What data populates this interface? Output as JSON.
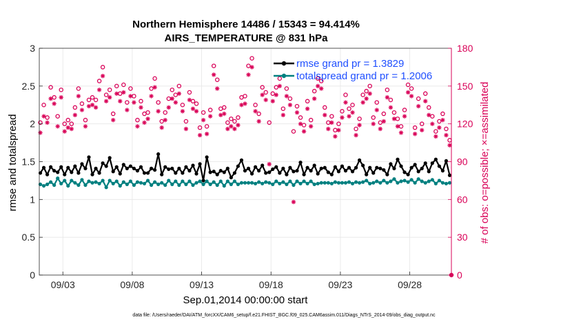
{
  "colors": {
    "rmse": "#000000",
    "totalspread": "#008080",
    "obs": "#d90057",
    "legend_text": "#1f4fff"
  },
  "chart_data": {
    "type": "line",
    "title": "Northern Hemisphere 14486 / 15343 = 94.414%",
    "subtitle": "AIRS_TEMPERATURE @ 831 hPa",
    "xlabel": "Sep.01,2014 00:00:00 start",
    "ylabel": "rmse and totalspread",
    "ylabel_right": "# of obs: o=possible; ×=assimilated",
    "x_ticks": [
      "09/03",
      "09/08",
      "09/13",
      "09/18",
      "09/23",
      "09/28"
    ],
    "x_tick_days": [
      3,
      8,
      13,
      18,
      23,
      28
    ],
    "x_range_days": [
      1.3,
      31
    ],
    "y_left_ticks": [
      "0",
      "0.5",
      "1",
      "1.5",
      "2",
      "2.5",
      "3"
    ],
    "y_left_range": [
      0,
      3
    ],
    "y_right_ticks": [
      "0",
      "30",
      "60",
      "90",
      "120",
      "150",
      "180"
    ],
    "y_right_range": [
      0,
      180
    ],
    "grid": true,
    "legend_location": "top-right",
    "legend": [
      "rmse grand pr = 1.3829",
      "totalspread grand pr = 1.2006"
    ],
    "footer": "data file: /Users/raeder/DAI/ATM_forcXX/CAM6_setup/f.e21.FHIST_BGC.f09_025.CAM6assim.011/Diags_NTrS_2014-09/obs_diag_output.nc",
    "x_days": [
      1.375,
      1.625,
      1.875,
      2.125,
      2.375,
      2.625,
      2.875,
      3.125,
      3.375,
      3.625,
      3.875,
      4.125,
      4.375,
      4.625,
      4.875,
      5.125,
      5.375,
      5.625,
      5.875,
      6.125,
      6.375,
      6.625,
      6.875,
      7.125,
      7.375,
      7.625,
      7.875,
      8.125,
      8.375,
      8.625,
      8.875,
      9.125,
      9.375,
      9.625,
      9.875,
      10.125,
      10.375,
      10.625,
      10.875,
      11.125,
      11.375,
      11.625,
      11.875,
      12.125,
      12.375,
      12.625,
      12.875,
      13.125,
      13.375,
      13.625,
      13.875,
      14.125,
      14.375,
      14.625,
      14.875,
      15.125,
      15.375,
      15.625,
      15.875,
      16.125,
      16.375,
      16.625,
      16.875,
      17.125,
      17.375,
      17.625,
      17.875,
      18.125,
      18.375,
      18.625,
      18.875,
      19.125,
      19.375,
      19.625,
      19.875,
      20.125,
      20.375,
      20.625,
      20.875,
      21.125,
      21.375,
      21.625,
      21.875,
      22.125,
      22.375,
      22.625,
      22.875,
      23.125,
      23.375,
      23.625,
      23.875,
      24.125,
      24.375,
      24.625,
      24.875,
      25.125,
      25.375,
      25.625,
      25.875,
      26.125,
      26.375,
      26.625,
      26.875,
      27.125,
      27.375,
      27.625,
      27.875,
      28.125,
      28.375,
      28.625,
      28.875,
      29.125,
      29.375,
      29.625,
      29.875,
      30.125,
      30.375,
      30.625,
      30.875
    ],
    "series": [
      {
        "name": "rmse grand pr = 1.3829",
        "values": [
          1.35,
          1.42,
          1.33,
          1.43,
          1.38,
          1.36,
          1.43,
          1.33,
          1.42,
          1.36,
          1.44,
          1.35,
          1.47,
          1.41,
          1.56,
          1.33,
          1.41,
          1.35,
          1.48,
          1.44,
          1.55,
          1.37,
          1.43,
          1.34,
          1.46,
          1.41,
          1.44,
          1.41,
          1.38,
          1.43,
          1.35,
          1.35,
          1.41,
          1.39,
          1.6,
          1.33,
          1.43,
          1.4,
          1.41,
          1.35,
          1.41,
          1.35,
          1.43,
          1.38,
          1.45,
          1.34,
          1.47,
          1.25,
          1.56,
          1.36,
          1.37,
          1.33,
          1.38,
          1.36,
          1.41,
          1.29,
          1.35,
          1.44,
          1.52,
          1.38,
          1.41,
          1.34,
          1.43,
          1.38,
          1.45,
          1.35,
          1.36,
          1.4,
          1.43,
          1.35,
          1.41,
          1.33,
          1.42,
          1.37,
          1.38,
          1.49,
          1.33,
          1.42,
          1.38,
          1.45,
          1.34,
          1.41,
          1.42,
          1.36,
          1.33,
          1.43,
          1.37,
          1.44,
          1.38,
          1.42,
          1.37,
          1.42,
          1.52,
          1.45,
          1.33,
          1.42,
          1.35,
          1.42,
          1.41,
          1.39,
          1.33,
          1.47,
          1.41,
          1.53,
          1.44,
          1.36,
          1.33,
          1.42,
          1.46,
          1.37,
          1.41,
          1.48,
          1.37,
          1.48,
          1.53,
          1.44,
          1.38,
          1.51,
          1.32
        ]
      },
      {
        "name": "totalspread grand pr = 1.2006",
        "values": [
          1.2,
          1.18,
          1.2,
          1.23,
          1.19,
          1.28,
          1.21,
          1.25,
          1.18,
          1.25,
          1.22,
          1.19,
          1.26,
          1.19,
          1.24,
          1.22,
          1.23,
          1.21,
          1.25,
          1.16,
          1.25,
          1.21,
          1.24,
          1.18,
          1.23,
          1.2,
          1.24,
          1.19,
          1.23,
          1.22,
          1.21,
          1.25,
          1.19,
          1.23,
          1.2,
          1.22,
          1.19,
          1.25,
          1.2,
          1.24,
          1.19,
          1.24,
          1.2,
          1.24,
          1.19,
          1.22,
          1.24,
          1.2,
          1.24,
          1.2,
          1.23,
          1.19,
          1.24,
          1.18,
          1.24,
          1.2,
          1.24,
          1.2,
          1.22,
          1.22,
          1.22,
          1.22,
          1.21,
          1.23,
          1.21,
          1.23,
          1.22,
          1.2,
          1.24,
          1.21,
          1.23,
          1.2,
          1.24,
          1.19,
          1.24,
          1.21,
          1.24,
          1.21,
          1.24,
          1.2,
          1.21,
          1.22,
          1.22,
          1.22,
          1.21,
          1.23,
          1.22,
          1.22,
          1.22,
          1.23,
          1.21,
          1.23,
          1.22,
          1.23,
          1.25,
          1.21,
          1.22,
          1.24,
          1.22,
          1.25,
          1.22,
          1.24,
          1.27,
          1.22,
          1.24,
          1.25,
          1.23,
          1.26,
          1.22,
          1.27,
          1.24,
          1.22,
          1.24,
          1.26,
          1.21,
          1.25,
          1.22,
          1.21,
          1.22
        ]
      }
    ],
    "obs_possible": [
      121,
      135,
      125,
      149,
      141,
      126,
      147,
      120,
      123,
      120,
      133,
      148,
      136,
      123,
      139,
      141,
      139,
      154,
      165,
      143,
      147,
      128,
      150,
      144,
      151,
      137,
      148,
      142,
      123,
      138,
      128,
      129,
      148,
      156,
      137,
      122,
      129,
      140,
      147,
      143,
      150,
      135,
      122,
      145,
      138,
      136,
      117,
      129,
      118,
      131,
      166,
      155,
      132,
      133,
      121,
      124,
      122,
      125,
      141,
      142,
      166,
      172,
      135,
      128,
      149,
      145,
      121,
      144,
      149,
      156,
      132,
      148,
      140,
      114,
      134,
      125,
      119,
      138,
      123,
      146,
      156,
      154,
      133,
      121,
      126,
      115,
      120,
      130,
      143,
      132,
      135,
      116,
      124,
      143,
      146,
      150,
      125,
      137,
      121,
      128,
      147,
      139,
      129,
      124,
      118,
      131,
      151,
      148,
      117,
      140,
      120,
      144,
      133,
      126,
      114,
      122,
      128,
      116,
      107
    ],
    "obs_assimilated": [
      113,
      126,
      121,
      140,
      136,
      118,
      141,
      114,
      117,
      116,
      127,
      142,
      131,
      118,
      134,
      135,
      133,
      147,
      158,
      138,
      141,
      123,
      144,
      138,
      145,
      131,
      142,
      137,
      118,
      133,
      121,
      124,
      142,
      149,
      130,
      117,
      123,
      133,
      140,
      137,
      144,
      130,
      116,
      139,
      132,
      130,
      111,
      123,
      112,
      126,
      159,
      148,
      127,
      128,
      116,
      118,
      116,
      119,
      135,
      136,
      159,
      165,
      130,
      122,
      143,
      139,
      88,
      138,
      143,
      150,
      127,
      142,
      135,
      58,
      129,
      120,
      114,
      132,
      118,
      140,
      150,
      148,
      127,
      116,
      121,
      110,
      115,
      125,
      137,
      126,
      129,
      111,
      119,
      137,
      140,
      144,
      120,
      131,
      116,
      122,
      141,
      133,
      124,
      118,
      113,
      126,
      145,
      142,
      112,
      134,
      115,
      138,
      127,
      120,
      110,
      117,
      123,
      111,
      103
    ]
  }
}
